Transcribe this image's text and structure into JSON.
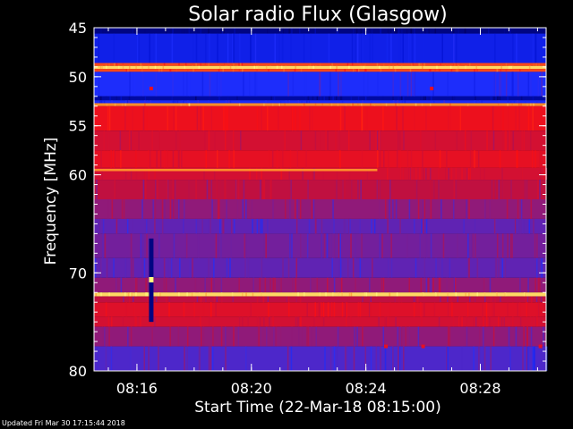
{
  "chart_data": {
    "type": "heatmap",
    "title": "Solar radio Flux (Glasgow)",
    "xlabel": "Start Time (22-Mar-18 08:15:00)",
    "ylabel": "Frequency [MHz]",
    "x_ticks": [
      "08:16",
      "08:20",
      "08:24",
      "08:28"
    ],
    "x_tick_minutes": [
      1,
      5,
      9,
      13
    ],
    "x_range_minutes": [
      -0.5,
      15.3
    ],
    "ylim": [
      45,
      80
    ],
    "y_ticks": [
      45,
      50,
      55,
      60,
      70,
      80
    ],
    "y_inverted": true,
    "colormap": [
      "#000060",
      "#0010d0",
      "#2030ff",
      "#c01040",
      "#ff1010",
      "#ff8020",
      "#ffff80"
    ],
    "bands": [
      {
        "from": 45.0,
        "to": 45.6,
        "level": 0.05
      },
      {
        "from": 45.6,
        "to": 48.6,
        "level": 0.25
      },
      {
        "from": 48.6,
        "to": 48.9,
        "level": 0.75
      },
      {
        "from": 48.9,
        "to": 49.2,
        "level": 0.95
      },
      {
        "from": 49.2,
        "to": 49.5,
        "level": 0.75
      },
      {
        "from": 49.5,
        "to": 52.0,
        "level": 0.32
      },
      {
        "from": 52.0,
        "to": 52.4,
        "level": 0.1
      },
      {
        "from": 52.4,
        "to": 52.7,
        "level": 0.3
      },
      {
        "from": 52.7,
        "to": 53.0,
        "level": 0.85
      },
      {
        "from": 53.0,
        "to": 55.5,
        "level": 0.62
      },
      {
        "from": 55.5,
        "to": 57.5,
        "level": 0.55
      },
      {
        "from": 57.5,
        "to": 59.3,
        "level": 0.6
      },
      {
        "from": 59.3,
        "to": 60.5,
        "level": 0.55
      },
      {
        "from": 60.5,
        "to": 62.5,
        "level": 0.5
      },
      {
        "from": 62.5,
        "to": 64.5,
        "level": 0.45
      },
      {
        "from": 64.5,
        "to": 66.0,
        "level": 0.4
      },
      {
        "from": 66.0,
        "to": 68.5,
        "level": 0.42
      },
      {
        "from": 68.5,
        "to": 70.5,
        "level": 0.4
      },
      {
        "from": 70.5,
        "to": 72.0,
        "level": 0.45
      },
      {
        "from": 72.0,
        "to": 72.4,
        "level": 0.95
      },
      {
        "from": 72.4,
        "to": 73.0,
        "level": 0.5
      },
      {
        "from": 73.0,
        "to": 74.5,
        "level": 0.58
      },
      {
        "from": 74.5,
        "to": 75.5,
        "level": 0.55
      },
      {
        "from": 75.5,
        "to": 77.5,
        "level": 0.45
      },
      {
        "from": 77.5,
        "to": 80.0,
        "level": 0.38
      }
    ],
    "features": [
      {
        "kind": "line",
        "freq": 59.5,
        "t_start": -0.5,
        "t_end": 9.4,
        "level": 0.85
      },
      {
        "kind": "burst",
        "t": 1.5,
        "f_start": 66.5,
        "f_end": 75.0,
        "level": 0.05,
        "peak_freq": 70.7,
        "peak_level": 1.0
      },
      {
        "kind": "spot",
        "t": 1.5,
        "freq": 51.2,
        "level": 0.6
      },
      {
        "kind": "spot",
        "t": 11.3,
        "freq": 51.2,
        "level": 0.6
      },
      {
        "kind": "spot",
        "t": 9.7,
        "freq": 77.5,
        "level": 0.6
      },
      {
        "kind": "spot",
        "t": 11.0,
        "freq": 77.5,
        "level": 0.6
      },
      {
        "kind": "spot",
        "t": 15.1,
        "freq": 77.5,
        "level": 0.6
      }
    ]
  },
  "footer": {
    "updated": "Updated Fri Mar 30 17:15:44 2018"
  }
}
